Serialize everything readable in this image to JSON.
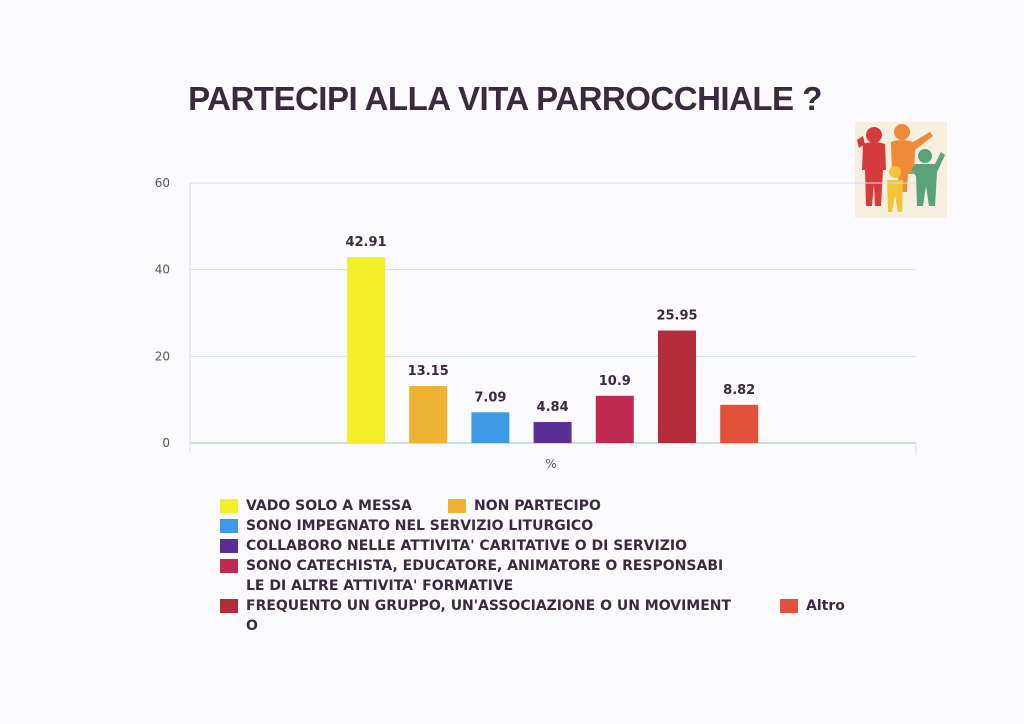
{
  "title": "PARTECIPI ALLA VITA PARROCCHIALE ?",
  "logo_icon": "family-icon",
  "chart_data": {
    "type": "bar",
    "title": "PARTECIPI ALLA VITA PARROCCHIALE ?",
    "xlabel": "%",
    "ylabel": "",
    "ylim": [
      0,
      60
    ],
    "yticks": [
      "0",
      "20",
      "40",
      "60"
    ],
    "grid": true,
    "legend_position": "bottom",
    "series": [
      {
        "name": "VADO SOLO A MESSA",
        "values": [
          42.91
        ],
        "color": "#f5ef2a",
        "label": "42.91"
      },
      {
        "name": "NON PARTECIPO",
        "values": [
          13.15
        ],
        "color": "#eeb232",
        "label": "13.15"
      },
      {
        "name": "SONO IMPEGNATO NEL SERVIZIO LITURGICO",
        "values": [
          7.09
        ],
        "color": "#3f9ae6",
        "label": "7.09"
      },
      {
        "name": "COLLABORO NELLE ATTIVITA' CARITATIVE O DI SERVIZIO",
        "values": [
          4.84
        ],
        "color": "#5a2f95",
        "label": "4.84"
      },
      {
        "name": "SONO CATECHISTA, EDUCATORE, ANIMATORE O RESPONSABI LE DI ALTRE ATTIVITA' FORMATIVE",
        "values": [
          10.9
        ],
        "color": "#c02a52",
        "label": "10.9"
      },
      {
        "name": "FREQUENTO UN GRUPPO, UN'ASSOCIAZIONE O UN MOVIMENT O",
        "values": [
          25.95
        ],
        "color": "#b42c3a",
        "label": "25.95"
      },
      {
        "name": "Altro",
        "values": [
          8.82
        ],
        "color": "#e4513a",
        "label": "8.82"
      }
    ]
  },
  "legend": {
    "row1_a": "VADO SOLO A MESSA",
    "row1_b": "NON PARTECIPO",
    "row2": "SONO IMPEGNATO NEL SERVIZIO LITURGICO",
    "row3": "COLLABORO NELLE ATTIVITA' CARITATIVE O DI SERVIZIO",
    "row4_line1": "SONO CATECHISTA, EDUCATORE, ANIMATORE O RESPONSABI",
    "row4_line2": "LE DI ALTRE ATTIVITA' FORMATIVE",
    "row5_line1": "FREQUENTO UN GRUPPO, UN'ASSOCIAZIONE O UN MOVIMENT",
    "row5_line2": "O",
    "row5_b": "Altro"
  }
}
